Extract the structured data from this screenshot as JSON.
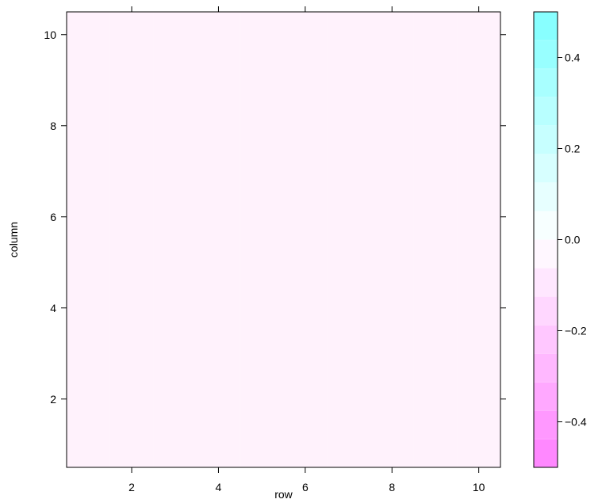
{
  "chart_data": {
    "type": "heatmap",
    "xlabel": "row",
    "ylabel": "column",
    "xlim": [
      0.5,
      10.5
    ],
    "ylim": [
      0.5,
      10.5
    ],
    "x_ticks": [
      2,
      4,
      6,
      8,
      10
    ],
    "y_ticks": [
      2,
      4,
      6,
      8,
      10
    ],
    "x_tick_labels": [
      "2",
      "4",
      "6",
      "8",
      "10"
    ],
    "y_tick_labels": [
      "2",
      "4",
      "6",
      "8",
      "10"
    ],
    "rows": 10,
    "columns": 10,
    "values": [
      [
        0,
        0,
        0,
        0,
        0,
        0,
        0,
        0,
        0,
        0
      ],
      [
        0,
        0,
        0,
        0,
        0,
        0,
        0,
        0,
        0,
        0
      ],
      [
        0,
        0,
        0,
        0,
        0,
        0,
        0,
        0,
        0,
        0
      ],
      [
        0,
        0,
        0,
        0,
        0,
        0,
        0,
        0,
        0,
        0
      ],
      [
        0,
        0,
        0,
        0,
        0,
        0,
        0,
        0,
        0,
        0
      ],
      [
        0,
        0,
        0,
        0,
        0,
        0,
        0,
        0,
        0,
        0
      ],
      [
        0,
        0,
        0,
        0,
        0,
        0,
        0,
        0,
        0,
        0
      ],
      [
        0,
        0,
        0,
        0,
        0,
        0,
        0,
        0,
        0,
        0
      ],
      [
        0,
        0,
        0,
        0,
        0,
        0,
        0,
        0,
        0,
        0
      ],
      [
        0,
        0,
        0,
        0,
        0,
        0,
        0,
        0,
        0,
        0
      ]
    ],
    "colorbar": {
      "range": [
        -0.5,
        0.5
      ],
      "ticks": [
        -0.4,
        -0.2,
        0.0,
        0.2,
        0.4
      ],
      "tick_labels": [
        "−0.4",
        "−0.2",
        "0.0",
        "0.2",
        "0.4"
      ],
      "low_color": "#ff80ff",
      "high_color": "#80ffff",
      "mid_color": "#ffffff",
      "bands": 16
    },
    "grid": false,
    "cell_color": "#fff2fc"
  }
}
